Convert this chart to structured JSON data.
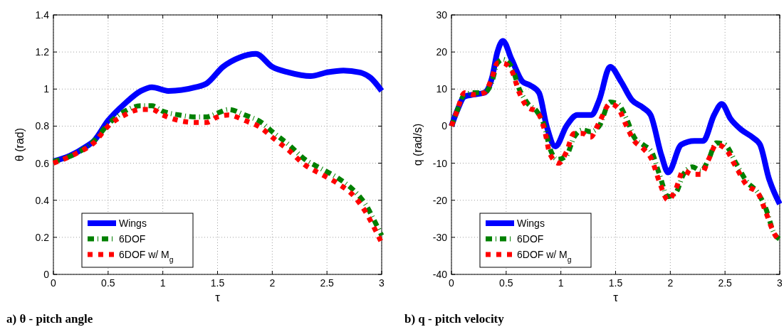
{
  "chart_data": [
    {
      "type": "line",
      "title": "a) θ - pitch angle",
      "xlabel": "τ",
      "ylabel": "θ (rad)",
      "xlim": [
        0,
        3
      ],
      "xticks": [
        0,
        0.5,
        1,
        1.5,
        2,
        2.5,
        3
      ],
      "ylim": [
        0,
        1.4
      ],
      "yticks": [
        0,
        0.2,
        0.4,
        0.6,
        0.8,
        1,
        1.2,
        1.4
      ],
      "grid": true,
      "legend": "bottom left",
      "marker": "none",
      "series": [
        {
          "name": "Wings",
          "color": "#0000ff",
          "line_style": "solid",
          "x": [
            0,
            0.15,
            0.3,
            0.37,
            0.5,
            0.65,
            0.8,
            0.9,
            1.05,
            1.3,
            1.4,
            1.55,
            1.7,
            1.85,
            2.0,
            2.15,
            2.35,
            2.5,
            2.65,
            2.8,
            2.9,
            3.0
          ],
          "values": [
            0.61,
            0.64,
            0.69,
            0.72,
            0.83,
            0.92,
            0.99,
            1.01,
            0.99,
            1.01,
            1.03,
            1.12,
            1.17,
            1.19,
            1.12,
            1.09,
            1.07,
            1.09,
            1.1,
            1.09,
            1.06,
            0.99
          ]
        },
        {
          "name": "6DOF",
          "color": "#008000",
          "line_style": "dashed",
          "x": [
            0,
            0.2,
            0.37,
            0.5,
            0.65,
            0.8,
            0.9,
            1.0,
            1.15,
            1.3,
            1.4,
            1.5,
            1.6,
            1.75,
            1.9,
            2.0,
            2.15,
            2.3,
            2.45,
            2.6,
            2.75,
            2.85,
            2.95,
            3.0
          ],
          "values": [
            0.61,
            0.65,
            0.72,
            0.81,
            0.88,
            0.91,
            0.91,
            0.88,
            0.86,
            0.85,
            0.85,
            0.87,
            0.89,
            0.86,
            0.82,
            0.77,
            0.7,
            0.62,
            0.57,
            0.52,
            0.45,
            0.38,
            0.27,
            0.21
          ]
        },
        {
          "name": "6DOF w/ M$_{g}$",
          "color": "#ff0000",
          "line_style": "dotted",
          "x": [
            0,
            0.2,
            0.37,
            0.5,
            0.65,
            0.8,
            0.9,
            1.0,
            1.15,
            1.3,
            1.4,
            1.5,
            1.6,
            1.75,
            1.9,
            2.0,
            2.15,
            2.3,
            2.45,
            2.6,
            2.75,
            2.85,
            2.95,
            3.0
          ],
          "values": [
            0.6,
            0.65,
            0.71,
            0.8,
            0.86,
            0.89,
            0.89,
            0.86,
            0.83,
            0.82,
            0.82,
            0.85,
            0.86,
            0.83,
            0.79,
            0.74,
            0.67,
            0.59,
            0.54,
            0.49,
            0.42,
            0.34,
            0.23,
            0.17
          ]
        }
      ]
    },
    {
      "type": "line",
      "title": "b) q - pitch velocity",
      "xlabel": "τ",
      "ylabel": "q (rad/s)",
      "xlim": [
        0,
        3
      ],
      "xticks": [
        0,
        0.5,
        1,
        1.5,
        2,
        2.5,
        3
      ],
      "ylim": [
        -40,
        30
      ],
      "yticks": [
        -40,
        -30,
        -20,
        -10,
        0,
        10,
        20,
        30
      ],
      "grid": true,
      "legend": "bottom left",
      "marker": "none",
      "series": [
        {
          "name": "Wings",
          "color": "#0000ff",
          "line_style": "solid",
          "x": [
            0,
            0.05,
            0.12,
            0.2,
            0.3,
            0.37,
            0.42,
            0.47,
            0.55,
            0.65,
            0.72,
            0.8,
            0.87,
            0.95,
            1.05,
            1.15,
            1.28,
            1.35,
            1.45,
            1.55,
            1.65,
            1.75,
            1.82,
            1.92,
            1.98,
            2.1,
            2.22,
            2.3,
            2.4,
            2.47,
            2.55,
            2.65,
            2.75,
            2.82,
            2.9,
            3.0
          ],
          "values": [
            0,
            4,
            8,
            8.5,
            9,
            13,
            20,
            23,
            18,
            12,
            11,
            9,
            0,
            -5.5,
            0,
            3,
            3,
            7,
            16,
            12,
            7,
            5,
            3,
            -8,
            -12.5,
            -5,
            -4,
            -4,
            3,
            6,
            2,
            -1,
            -3,
            -5,
            -14,
            -21
          ]
        },
        {
          "name": "6DOF",
          "color": "#008000",
          "line_style": "dashed",
          "x": [
            0,
            0.05,
            0.12,
            0.2,
            0.3,
            0.37,
            0.42,
            0.47,
            0.55,
            0.62,
            0.7,
            0.78,
            0.85,
            0.9,
            0.97,
            1.05,
            1.12,
            1.2,
            1.27,
            1.35,
            1.45,
            1.52,
            1.6,
            1.67,
            1.75,
            1.83,
            1.9,
            1.98,
            2.05,
            2.12,
            2.2,
            2.28,
            2.35,
            2.42,
            2.5,
            2.6,
            2.7,
            2.8,
            2.87,
            2.95,
            3.0
          ],
          "values": [
            0,
            4,
            8.5,
            9,
            9,
            12,
            17,
            18,
            16,
            10,
            6,
            4,
            0,
            -6,
            -9,
            -8,
            -3,
            -1,
            -1.5,
            0,
            6.5,
            6,
            2,
            -3,
            -5,
            -7,
            -13,
            -19,
            -18,
            -13,
            -11,
            -12,
            -9,
            -4.5,
            -5,
            -10,
            -15,
            -18,
            -22,
            -29,
            -30.5
          ]
        },
        {
          "name": "6DOF w/ M$_{g}$",
          "color": "#ff0000",
          "line_style": "dotted",
          "x": [
            0,
            0.05,
            0.12,
            0.2,
            0.3,
            0.37,
            0.42,
            0.47,
            0.55,
            0.62,
            0.7,
            0.78,
            0.85,
            0.9,
            0.98,
            1.05,
            1.12,
            1.2,
            1.27,
            1.35,
            1.45,
            1.52,
            1.6,
            1.67,
            1.75,
            1.83,
            1.9,
            1.98,
            2.05,
            2.12,
            2.2,
            2.28,
            2.35,
            2.42,
            2.5,
            2.6,
            2.7,
            2.8,
            2.87,
            2.95,
            3.0
          ],
          "values": [
            0,
            4,
            9,
            8.5,
            9,
            13,
            17,
            17,
            15,
            9,
            5,
            4,
            -1,
            -7.5,
            -10,
            -7,
            -2,
            -2,
            -3,
            1,
            6,
            5,
            0,
            -4,
            -6,
            -9,
            -15,
            -20,
            -17,
            -12,
            -13,
            -13,
            -9,
            -5,
            -6,
            -11,
            -16,
            -18,
            -23,
            -29,
            -31
          ]
        }
      ]
    }
  ]
}
